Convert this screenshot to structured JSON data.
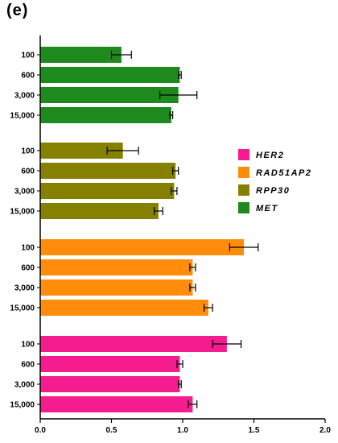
{
  "panel_label": "(e)",
  "chart_data": {
    "type": "bar",
    "orientation": "horizontal",
    "title": "",
    "xlabel": "",
    "ylabel": "",
    "xlim": [
      0,
      2.0
    ],
    "x_ticks": [
      "0.0",
      "0.5",
      "1.0",
      "1.5",
      "2.0"
    ],
    "x_tick_values": [
      0,
      0.5,
      1.0,
      1.5,
      2.0
    ],
    "categories": [
      "100",
      "600",
      "3,000",
      "15,000"
    ],
    "legend_position": "right",
    "groups": [
      {
        "name": "MET",
        "color": "#1e8a1e",
        "values": [
          0.57,
          0.98,
          0.97,
          0.92
        ],
        "errors": [
          0.07,
          0.01,
          0.13,
          0.01
        ]
      },
      {
        "name": "RPP30",
        "color": "#858000",
        "values": [
          0.58,
          0.95,
          0.94,
          0.83
        ],
        "errors": [
          0.11,
          0.02,
          0.02,
          0.03
        ]
      },
      {
        "name": "RAD51AP2",
        "color": "#ff8c0a",
        "values": [
          1.43,
          1.07,
          1.07,
          1.18
        ],
        "errors": [
          0.1,
          0.02,
          0.02,
          0.03
        ]
      },
      {
        "name": "HER2",
        "color": "#f41c8e",
        "values": [
          1.31,
          0.98,
          0.98,
          1.07
        ],
        "errors": [
          0.1,
          0.02,
          0.01,
          0.03
        ]
      }
    ],
    "legend": [
      {
        "name": "HER2",
        "color": "#f41c8e"
      },
      {
        "name": "RAD51AP2",
        "color": "#ff8c0a"
      },
      {
        "name": "RPP30",
        "color": "#858000"
      },
      {
        "name": "MET",
        "color": "#1e8a1e"
      }
    ]
  }
}
